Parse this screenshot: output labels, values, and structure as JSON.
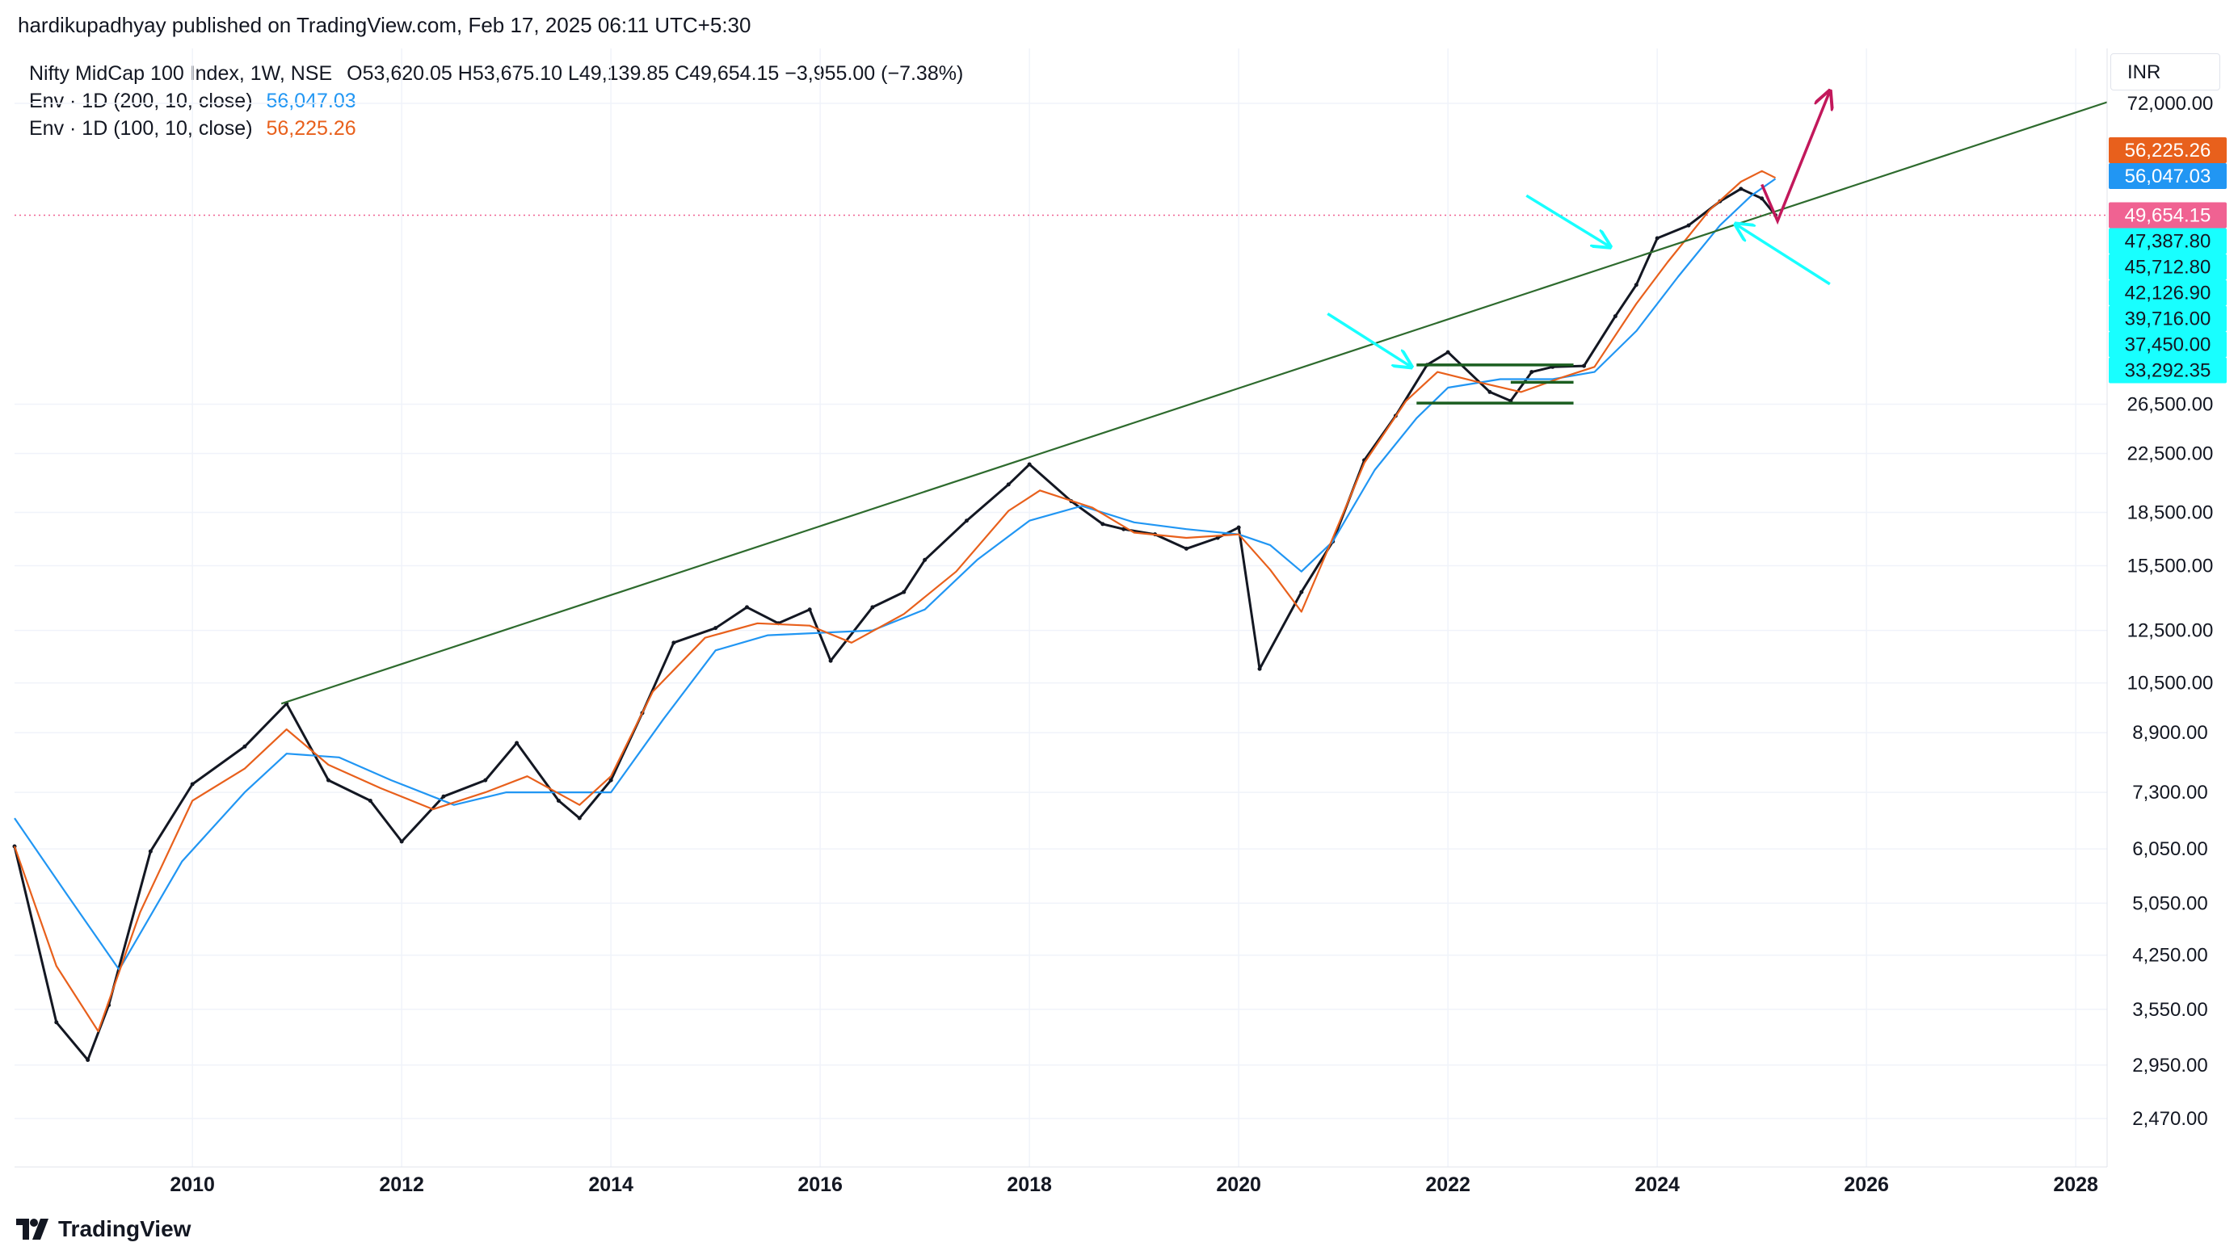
{
  "header": {
    "publisher": "hardikupadhyay published on TradingView.com, Feb 17, 2025 06:11 UTC+5:30"
  },
  "legend": {
    "symbol": "Nifty MidCap 100 Index, 1W, NSE",
    "ohlc": "O53,620.05  H53,675.10  L49,139.85  C49,654.15  −3,955.00 (−7.38%)",
    "indicators": [
      {
        "label": "Env · 1D (200, 10, close)",
        "value": "56,047.03",
        "color": "#2196f3"
      },
      {
        "label": "Env · 1D (100, 10, close)",
        "value": "56,225.26",
        "color": "#e8601c"
      }
    ]
  },
  "currency": "INR",
  "footer": {
    "brand": "TradingView"
  },
  "chart_data": {
    "type": "line",
    "title": "Nifty MidCap 100 Index, 1W, NSE",
    "scale": "log",
    "xlabel": "",
    "ylabel": "INR",
    "xlim": [
      2008.3,
      2028.3
    ],
    "ylim": [
      2200,
      80000
    ],
    "x_ticks": [
      "2010",
      "2012",
      "2014",
      "2016",
      "2018",
      "2020",
      "2022",
      "2024",
      "2026",
      "2028"
    ],
    "y_ticks": [
      "72,000.00",
      "26,500.00",
      "22,500.00",
      "18,500.00",
      "15,500.00",
      "12,500.00",
      "10,500.00",
      "8,900.00",
      "7,300.00",
      "6,050.00",
      "5,050.00",
      "4,250.00",
      "3,550.00",
      "2,950.00",
      "2,470.00"
    ],
    "series": [
      {
        "name": "Nifty MidCap 100 (weekly close)",
        "color": "#131722",
        "x": [
          2008.3,
          2008.7,
          2009.0,
          2009.2,
          2009.6,
          2010.0,
          2010.5,
          2010.9,
          2011.3,
          2011.7,
          2012.0,
          2012.4,
          2012.8,
          2013.1,
          2013.5,
          2013.7,
          2014.0,
          2014.3,
          2014.6,
          2015.0,
          2015.3,
          2015.6,
          2015.9,
          2016.1,
          2016.5,
          2016.8,
          2017.0,
          2017.4,
          2017.8,
          2018.0,
          2018.4,
          2018.7,
          2018.9,
          2019.2,
          2019.5,
          2019.8,
          2020.0,
          2020.2,
          2020.6,
          2020.9,
          2021.2,
          2021.5,
          2021.8,
          2022.0,
          2022.4,
          2022.6,
          2022.8,
          2023.0,
          2023.3,
          2023.6,
          2023.8,
          2024.0,
          2024.3,
          2024.6,
          2024.8,
          2025.0,
          2025.13
        ],
        "y": [
          6100,
          3400,
          3000,
          3600,
          6000,
          7500,
          8500,
          9800,
          7600,
          7100,
          6200,
          7200,
          7600,
          8600,
          7100,
          6700,
          7600,
          9500,
          12000,
          12600,
          13500,
          12800,
          13400,
          11300,
          13500,
          14200,
          15800,
          18000,
          20300,
          21700,
          19200,
          17800,
          17500,
          17200,
          16400,
          17000,
          17600,
          11000,
          14200,
          16800,
          22000,
          25500,
          30200,
          31500,
          27600,
          26800,
          29500,
          30000,
          30100,
          35500,
          39400,
          46000,
          48000,
          52000,
          54200,
          52500,
          49654.15
        ]
      },
      {
        "name": "Env · 1D (200, 10, close)",
        "color": "#2196f3",
        "x": [
          2008.3,
          2008.8,
          2009.3,
          2009.9,
          2010.5,
          2010.9,
          2011.4,
          2011.9,
          2012.5,
          2013.0,
          2013.5,
          2014.0,
          2014.5,
          2015.0,
          2015.5,
          2016.0,
          2016.5,
          2017.0,
          2017.5,
          2018.0,
          2018.5,
          2019.0,
          2019.5,
          2020.0,
          2020.3,
          2020.6,
          2020.9,
          2021.3,
          2021.7,
          2022.0,
          2022.5,
          2023.0,
          2023.4,
          2023.8,
          2024.2,
          2024.6,
          2024.9,
          2025.13
        ],
        "y": [
          6700,
          5200,
          4050,
          5800,
          7300,
          8300,
          8200,
          7600,
          7000,
          7300,
          7300,
          7300,
          9300,
          11700,
          12300,
          12400,
          12500,
          13400,
          15800,
          18000,
          18900,
          17900,
          17500,
          17200,
          16600,
          15200,
          16800,
          21300,
          25300,
          28000,
          28800,
          28800,
          29500,
          33800,
          40500,
          48000,
          53000,
          56047.03
        ]
      },
      {
        "name": "Env · 1D (100, 10, close)",
        "color": "#e8601c",
        "x": [
          2008.3,
          2008.7,
          2009.1,
          2009.5,
          2010.0,
          2010.5,
          2010.9,
          2011.3,
          2011.8,
          2012.3,
          2012.8,
          2013.2,
          2013.7,
          2014.0,
          2014.4,
          2014.9,
          2015.4,
          2015.9,
          2016.3,
          2016.8,
          2017.3,
          2017.8,
          2018.1,
          2018.6,
          2019.0,
          2019.5,
          2020.0,
          2020.3,
          2020.6,
          2020.9,
          2021.2,
          2021.6,
          2021.9,
          2022.3,
          2022.7,
          2023.1,
          2023.4,
          2023.8,
          2024.1,
          2024.5,
          2024.8,
          2025.0,
          2025.13
        ],
        "y": [
          6100,
          4100,
          3300,
          4900,
          7100,
          7900,
          9000,
          8000,
          7400,
          6900,
          7300,
          7700,
          7000,
          7700,
          10200,
          12200,
          12800,
          12700,
          12000,
          13200,
          15200,
          18600,
          19900,
          18800,
          17300,
          17000,
          17200,
          15300,
          13300,
          17000,
          21800,
          26800,
          29500,
          28500,
          27600,
          29000,
          30000,
          37000,
          42500,
          50500,
          55500,
          57500,
          56225.26
        ]
      },
      {
        "name": "Trendline",
        "color": "#2e6b2e",
        "x": [
          2010.85,
          2028.3
        ],
        "y": [
          9800,
          72300
        ]
      }
    ],
    "price_tags": [
      {
        "value": "56,225.26",
        "bg": "#e8601c",
        "fg": "#ffffff"
      },
      {
        "value": "56,047.03",
        "bg": "#2196f3",
        "fg": "#ffffff"
      },
      {
        "value": "49,654.15",
        "bg": "#f06292",
        "fg": "#ffffff"
      },
      {
        "value": "47,387.80",
        "bg": "#18ffff",
        "fg": "#131722"
      },
      {
        "value": "45,712.80",
        "bg": "#18ffff",
        "fg": "#131722"
      },
      {
        "value": "42,126.90",
        "bg": "#18ffff",
        "fg": "#131722"
      },
      {
        "value": "39,716.00",
        "bg": "#18ffff",
        "fg": "#131722"
      },
      {
        "value": "37,450.00",
        "bg": "#18ffff",
        "fg": "#131722"
      },
      {
        "value": "33,292.35",
        "bg": "#18ffff",
        "fg": "#131722"
      }
    ],
    "current_price_line": 49654.15,
    "annotations": [
      {
        "type": "horizontal-segment",
        "color": "#1b5e20",
        "x": [
          2021.7,
          2023.2
        ],
        "y": 30200
      },
      {
        "type": "horizontal-segment",
        "color": "#1b5e20",
        "x": [
          2021.7,
          2023.2
        ],
        "y": 26600
      },
      {
        "type": "horizontal-segment",
        "color": "#1b5e20",
        "x": [
          2022.6,
          2023.2
        ],
        "y": 28500
      },
      {
        "type": "arrow",
        "color": "#18ffff",
        "from": [
          2020.85,
          35800
        ],
        "to": [
          2021.65,
          30000
        ]
      },
      {
        "type": "arrow",
        "color": "#18ffff",
        "from": [
          2022.75,
          53000
        ],
        "to": [
          2023.55,
          44700
        ]
      },
      {
        "type": "arrow",
        "color": "#18ffff",
        "from": [
          2025.65,
          39500
        ],
        "to": [
          2024.75,
          48200
        ]
      },
      {
        "type": "path-arrow",
        "color": "#c2185b",
        "x": [
          2025.0,
          2025.15,
          2025.65
        ],
        "y": [
          55000,
          48700,
          75000
        ]
      }
    ]
  }
}
